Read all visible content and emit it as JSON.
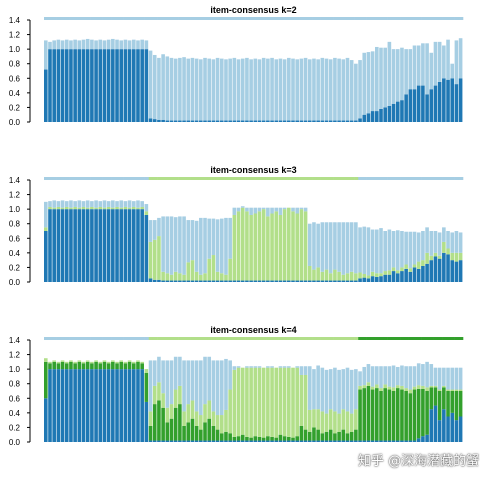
{
  "colors": {
    "c1": "#1f78b4",
    "c2": "#a6cee3",
    "c3": "#b2df8a",
    "c4": "#33a02c"
  },
  "watermark": "知乎 @深海潜藏的蟹",
  "chart_data": [
    {
      "type": "bar",
      "stacked": true,
      "title": "item-consensus k=2",
      "ylim": [
        0,
        1.4
      ],
      "yticks": [
        "0.0",
        "0.2",
        "0.4",
        "0.6",
        "0.8",
        "1.0",
        "1.2",
        "1.4"
      ],
      "class_strip": [
        "c2",
        "c2",
        "c2",
        "c2",
        "c2",
        "c2",
        "c2",
        "c2",
        "c2",
        "c2",
        "c2",
        "c2",
        "c2",
        "c2",
        "c2",
        "c2",
        "c2",
        "c2",
        "c2",
        "c2",
        "c2",
        "c2",
        "c2",
        "c2",
        "c2",
        "c2",
        "c2",
        "c2",
        "c2",
        "c2",
        "c2",
        "c2",
        "c2",
        "c2",
        "c2",
        "c2",
        "c2",
        "c2",
        "c2",
        "c2",
        "c2",
        "c2",
        "c2",
        "c2",
        "c2",
        "c2",
        "c2",
        "c2",
        "c2",
        "c2",
        "c2",
        "c2",
        "c2",
        "c2",
        "c2",
        "c2",
        "c2",
        "c2",
        "c2",
        "c2",
        "c2",
        "c2",
        "c2",
        "c2",
        "c2",
        "c2",
        "c2",
        "c2",
        "c2",
        "c2",
        "c2",
        "c2",
        "c2",
        "c2",
        "c2",
        "c2",
        "c2",
        "c2",
        "c2",
        "c2",
        "c2",
        "c2",
        "c2",
        "c2",
        "c2",
        "c2",
        "c2",
        "c2",
        "c2",
        "c2",
        "c2",
        "c2",
        "c2",
        "c2",
        "c2",
        "c2",
        "c2",
        "c2",
        "c2",
        "c2"
      ],
      "series_order": [
        "c1",
        "c2"
      ],
      "values": {
        "c1": [
          0.72,
          1.0,
          1.0,
          1.0,
          1.0,
          1.0,
          1.0,
          1.0,
          1.0,
          1.0,
          1.0,
          1.0,
          1.0,
          1.0,
          1.0,
          1.0,
          1.0,
          1.0,
          1.0,
          1.0,
          1.0,
          1.0,
          1.0,
          1.0,
          1.0,
          0.05,
          0.04,
          0.03,
          0.03,
          0.02,
          0.02,
          0.02,
          0.02,
          0.02,
          0.02,
          0.02,
          0.02,
          0.02,
          0.02,
          0.02,
          0.02,
          0.02,
          0.02,
          0.02,
          0.02,
          0.02,
          0.02,
          0.02,
          0.02,
          0.02,
          0.02,
          0.02,
          0.02,
          0.02,
          0.02,
          0.02,
          0.02,
          0.02,
          0.02,
          0.02,
          0.02,
          0.02,
          0.02,
          0.02,
          0.02,
          0.02,
          0.02,
          0.02,
          0.02,
          0.02,
          0.02,
          0.02,
          0.02,
          0.02,
          0.02,
          0.05,
          0.1,
          0.12,
          0.15,
          0.15,
          0.18,
          0.2,
          0.22,
          0.25,
          0.28,
          0.3,
          0.38,
          0.45,
          0.45,
          0.5,
          0.5,
          0.38,
          0.45,
          0.5,
          0.55,
          0.6,
          0.58,
          0.6,
          0.52,
          0.6
        ],
        "c2": [
          0.4,
          0.1,
          0.12,
          0.13,
          0.12,
          0.13,
          0.12,
          0.13,
          0.12,
          0.13,
          0.14,
          0.13,
          0.12,
          0.13,
          0.12,
          0.13,
          0.14,
          0.13,
          0.12,
          0.13,
          0.12,
          0.13,
          0.12,
          0.13,
          0.12,
          0.93,
          0.88,
          0.85,
          0.9,
          0.88,
          0.86,
          0.85,
          0.86,
          0.87,
          0.85,
          0.86,
          0.85,
          0.84,
          0.86,
          0.85,
          0.84,
          0.86,
          0.85,
          0.84,
          0.85,
          0.86,
          0.84,
          0.85,
          0.86,
          0.84,
          0.85,
          0.84,
          0.86,
          0.85,
          0.86,
          0.84,
          0.85,
          0.84,
          0.86,
          0.85,
          0.84,
          0.85,
          0.86,
          0.84,
          0.85,
          0.84,
          0.86,
          0.85,
          0.84,
          0.86,
          0.85,
          0.84,
          0.86,
          0.83,
          0.78,
          0.8,
          0.85,
          0.84,
          0.82,
          0.88,
          0.84,
          0.82,
          0.88,
          0.75,
          0.72,
          0.72,
          0.62,
          0.55,
          0.6,
          0.55,
          0.58,
          0.7,
          0.5,
          0.6,
          0.55,
          0.45,
          0.55,
          0.2,
          0.6,
          0.55
        ]
      }
    },
    {
      "type": "bar",
      "stacked": true,
      "title": "item-consensus k=3",
      "ylim": [
        0,
        1.4
      ],
      "yticks": [
        "0.0",
        "0.2",
        "0.4",
        "0.6",
        "0.8",
        "1.0",
        "1.2",
        "1.4"
      ],
      "class_strip": [
        "c2",
        "c2",
        "c2",
        "c2",
        "c2",
        "c2",
        "c2",
        "c2",
        "c2",
        "c2",
        "c2",
        "c2",
        "c2",
        "c2",
        "c2",
        "c2",
        "c2",
        "c2",
        "c2",
        "c2",
        "c2",
        "c2",
        "c2",
        "c2",
        "c2",
        "c3",
        "c3",
        "c3",
        "c3",
        "c3",
        "c3",
        "c3",
        "c3",
        "c3",
        "c3",
        "c3",
        "c3",
        "c3",
        "c3",
        "c3",
        "c3",
        "c3",
        "c3",
        "c3",
        "c3",
        "c3",
        "c3",
        "c3",
        "c3",
        "c3",
        "c3",
        "c3",
        "c3",
        "c3",
        "c3",
        "c3",
        "c3",
        "c3",
        "c3",
        "c3",
        "c3",
        "c3",
        "c3",
        "c3",
        "c3",
        "c3",
        "c3",
        "c3",
        "c3",
        "c3",
        "c3",
        "c3",
        "c3",
        "c3",
        "c3",
        "c2",
        "c2",
        "c2",
        "c2",
        "c2",
        "c2",
        "c2",
        "c2",
        "c2",
        "c2",
        "c2",
        "c2",
        "c2",
        "c2",
        "c2",
        "c2",
        "c2",
        "c2",
        "c2",
        "c2",
        "c2",
        "c2",
        "c2",
        "c2",
        "c2"
      ],
      "series_order": [
        "c1",
        "c3",
        "c2"
      ],
      "values": {
        "c1": [
          0.7,
          1.0,
          1.0,
          1.0,
          1.0,
          1.0,
          1.0,
          1.0,
          1.0,
          1.0,
          1.0,
          1.0,
          1.0,
          1.0,
          1.0,
          1.0,
          1.0,
          1.0,
          1.0,
          1.0,
          1.0,
          1.0,
          1.0,
          1.0,
          0.92,
          0.05,
          0.03,
          0.03,
          0.02,
          0.02,
          0.02,
          0.02,
          0.02,
          0.02,
          0.02,
          0.02,
          0.02,
          0.02,
          0.02,
          0.02,
          0.02,
          0.02,
          0.02,
          0.02,
          0.02,
          0.02,
          0.02,
          0.02,
          0.02,
          0.02,
          0.02,
          0.02,
          0.02,
          0.02,
          0.02,
          0.02,
          0.02,
          0.02,
          0.02,
          0.02,
          0.02,
          0.02,
          0.02,
          0.02,
          0.02,
          0.02,
          0.02,
          0.02,
          0.02,
          0.02,
          0.02,
          0.02,
          0.02,
          0.02,
          0.02,
          0.05,
          0.06,
          0.05,
          0.08,
          0.07,
          0.08,
          0.1,
          0.1,
          0.15,
          0.12,
          0.15,
          0.18,
          0.14,
          0.2,
          0.18,
          0.22,
          0.25,
          0.3,
          0.35,
          0.32,
          0.4,
          0.38,
          0.3,
          0.28,
          0.3
        ],
        "c3": [
          0.05,
          0.03,
          0.02,
          0.03,
          0.02,
          0.03,
          0.02,
          0.03,
          0.02,
          0.03,
          0.02,
          0.03,
          0.02,
          0.03,
          0.02,
          0.03,
          0.02,
          0.03,
          0.02,
          0.03,
          0.02,
          0.03,
          0.02,
          0.03,
          0.05,
          0.5,
          0.55,
          0.6,
          0.12,
          0.1,
          0.08,
          0.12,
          0.1,
          0.08,
          0.25,
          0.28,
          0.12,
          0.08,
          0.1,
          0.3,
          0.35,
          0.12,
          0.1,
          0.08,
          0.3,
          0.9,
          0.95,
          1.0,
          0.95,
          0.9,
          0.92,
          0.95,
          0.98,
          0.88,
          0.92,
          0.95,
          0.9,
          0.98,
          1.0,
          0.95,
          0.92,
          0.98,
          0.95,
          0.2,
          0.15,
          0.18,
          0.12,
          0.15,
          0.1,
          0.15,
          0.12,
          0.08,
          0.1,
          0.12,
          0.1,
          0.08,
          0.05,
          0.04,
          0.06,
          0.05,
          0.04,
          0.05,
          0.06,
          0.05,
          0.04,
          0.05,
          0.06,
          0.05,
          0.04,
          0.1,
          0.08,
          0.15,
          0.06,
          0.05,
          0.04,
          0.15,
          0.08,
          0.1,
          0.12,
          0.1
        ],
        "c2": [
          0.35,
          0.08,
          0.1,
          0.08,
          0.1,
          0.08,
          0.1,
          0.08,
          0.1,
          0.08,
          0.1,
          0.08,
          0.1,
          0.08,
          0.1,
          0.08,
          0.1,
          0.08,
          0.1,
          0.08,
          0.1,
          0.08,
          0.1,
          0.08,
          0.1,
          0.3,
          0.27,
          0.25,
          0.76,
          0.78,
          0.8,
          0.75,
          0.78,
          0.8,
          0.58,
          0.55,
          0.7,
          0.78,
          0.76,
          0.55,
          0.5,
          0.72,
          0.75,
          0.78,
          0.56,
          0.1,
          0.05,
          0.02,
          0.05,
          0.1,
          0.08,
          0.05,
          0.02,
          0.12,
          0.08,
          0.05,
          0.1,
          0.02,
          0.0,
          0.05,
          0.08,
          0.02,
          0.05,
          0.58,
          0.65,
          0.6,
          0.68,
          0.65,
          0.7,
          0.65,
          0.68,
          0.72,
          0.7,
          0.68,
          0.7,
          0.62,
          0.65,
          0.66,
          0.58,
          0.6,
          0.62,
          0.55,
          0.56,
          0.5,
          0.55,
          0.5,
          0.45,
          0.5,
          0.45,
          0.4,
          0.4,
          0.35,
          0.34,
          0.3,
          0.32,
          0.2,
          0.24,
          0.28,
          0.3,
          0.28
        ]
      }
    },
    {
      "type": "bar",
      "stacked": true,
      "title": "item-consensus k=4",
      "ylim": [
        0,
        1.4
      ],
      "yticks": [
        "0.0",
        "0.2",
        "0.4",
        "0.6",
        "0.8",
        "1.0",
        "1.2",
        "1.4"
      ],
      "class_strip": [
        "c2",
        "c2",
        "c2",
        "c2",
        "c2",
        "c2",
        "c2",
        "c2",
        "c2",
        "c2",
        "c2",
        "c2",
        "c2",
        "c2",
        "c2",
        "c2",
        "c2",
        "c2",
        "c2",
        "c2",
        "c2",
        "c2",
        "c2",
        "c2",
        "c2",
        "c3",
        "c3",
        "c3",
        "c3",
        "c3",
        "c3",
        "c3",
        "c3",
        "c3",
        "c3",
        "c3",
        "c3",
        "c3",
        "c3",
        "c3",
        "c3",
        "c3",
        "c3",
        "c3",
        "c3",
        "c3",
        "c3",
        "c3",
        "c3",
        "c3",
        "c3",
        "c3",
        "c3",
        "c3",
        "c3",
        "c3",
        "c3",
        "c3",
        "c3",
        "c3",
        "c3",
        "c3",
        "c3",
        "c3",
        "c3",
        "c3",
        "c3",
        "c3",
        "c3",
        "c3",
        "c3",
        "c3",
        "c3",
        "c3",
        "c3",
        "c4",
        "c4",
        "c4",
        "c4",
        "c4",
        "c4",
        "c4",
        "c4",
        "c4",
        "c4",
        "c4",
        "c4",
        "c4",
        "c4",
        "c4",
        "c4",
        "c4",
        "c4",
        "c4",
        "c4",
        "c4",
        "c4",
        "c4",
        "c4",
        "c4"
      ],
      "series_order": [
        "c1",
        "c4",
        "c3",
        "c2"
      ],
      "values": {
        "c1": [
          0.6,
          1.0,
          1.0,
          1.0,
          1.0,
          1.0,
          1.0,
          1.0,
          1.0,
          1.0,
          1.0,
          1.0,
          1.0,
          1.0,
          1.0,
          1.0,
          1.0,
          1.0,
          1.0,
          1.0,
          1.0,
          1.0,
          1.0,
          1.0,
          0.55,
          0.02,
          0.02,
          0.02,
          0.02,
          0.02,
          0.02,
          0.02,
          0.02,
          0.02,
          0.02,
          0.02,
          0.02,
          0.02,
          0.02,
          0.02,
          0.02,
          0.02,
          0.02,
          0.02,
          0.02,
          0.02,
          0.02,
          0.02,
          0.02,
          0.02,
          0.02,
          0.02,
          0.02,
          0.02,
          0.02,
          0.02,
          0.02,
          0.02,
          0.02,
          0.02,
          0.02,
          0.02,
          0.02,
          0.02,
          0.02,
          0.02,
          0.02,
          0.02,
          0.02,
          0.02,
          0.02,
          0.02,
          0.02,
          0.02,
          0.02,
          0.02,
          0.02,
          0.02,
          0.02,
          0.02,
          0.02,
          0.02,
          0.02,
          0.02,
          0.02,
          0.02,
          0.02,
          0.02,
          0.02,
          0.05,
          0.08,
          0.1,
          0.45,
          0.5,
          0.3,
          0.45,
          0.35,
          0.4,
          0.3,
          0.35
        ],
        "c4": [
          0.5,
          0.08,
          0.1,
          0.08,
          0.1,
          0.08,
          0.1,
          0.08,
          0.1,
          0.08,
          0.1,
          0.08,
          0.1,
          0.08,
          0.1,
          0.08,
          0.1,
          0.08,
          0.1,
          0.08,
          0.1,
          0.08,
          0.1,
          0.08,
          0.4,
          0.2,
          0.5,
          0.55,
          0.45,
          0.25,
          0.3,
          0.45,
          0.5,
          0.2,
          0.25,
          0.3,
          0.2,
          0.15,
          0.25,
          0.3,
          0.2,
          0.15,
          0.1,
          0.12,
          0.1,
          0.05,
          0.06,
          0.08,
          0.05,
          0.04,
          0.06,
          0.05,
          0.04,
          0.06,
          0.05,
          0.04,
          0.08,
          0.06,
          0.05,
          0.04,
          0.06,
          0.2,
          0.15,
          0.12,
          0.18,
          0.15,
          0.1,
          0.12,
          0.15,
          0.1,
          0.12,
          0.15,
          0.1,
          0.12,
          0.15,
          0.7,
          0.72,
          0.75,
          0.7,
          0.72,
          0.68,
          0.72,
          0.7,
          0.68,
          0.72,
          0.7,
          0.68,
          0.65,
          0.7,
          0.68,
          0.65,
          0.6,
          0.3,
          0.25,
          0.4,
          0.3,
          0.35,
          0.3,
          0.4,
          0.35
        ],
        "c3": [
          0.05,
          0.02,
          0.02,
          0.02,
          0.02,
          0.02,
          0.02,
          0.02,
          0.02,
          0.02,
          0.02,
          0.02,
          0.02,
          0.02,
          0.02,
          0.02,
          0.02,
          0.02,
          0.02,
          0.02,
          0.02,
          0.02,
          0.02,
          0.02,
          0.05,
          0.2,
          0.25,
          0.25,
          0.2,
          0.2,
          0.2,
          0.25,
          0.25,
          0.2,
          0.25,
          0.25,
          0.2,
          0.2,
          0.25,
          0.25,
          0.2,
          0.2,
          0.25,
          0.3,
          0.6,
          0.92,
          0.94,
          0.92,
          0.95,
          0.96,
          0.94,
          0.95,
          0.96,
          0.94,
          0.95,
          0.96,
          0.92,
          0.94,
          0.95,
          0.96,
          0.94,
          0.7,
          0.75,
          0.3,
          0.25,
          0.28,
          0.3,
          0.25,
          0.28,
          0.3,
          0.25,
          0.28,
          0.3,
          0.25,
          0.28,
          0.05,
          0.04,
          0.05,
          0.04,
          0.05,
          0.04,
          0.05,
          0.04,
          0.05,
          0.04,
          0.05,
          0.04,
          0.05,
          0.04,
          0.05,
          0.04,
          0.05,
          0.02,
          0.02,
          0.02,
          0.02,
          0.02,
          0.02,
          0.02,
          0.02
        ],
        "c2": [
          0.0,
          0.0,
          0.0,
          0.0,
          0.0,
          0.0,
          0.0,
          0.0,
          0.0,
          0.0,
          0.0,
          0.0,
          0.0,
          0.0,
          0.0,
          0.0,
          0.0,
          0.0,
          0.0,
          0.0,
          0.0,
          0.0,
          0.0,
          0.0,
          0.0,
          0.7,
          0.35,
          0.35,
          0.45,
          0.65,
          0.6,
          0.45,
          0.4,
          0.7,
          0.6,
          0.55,
          0.7,
          0.75,
          0.65,
          0.6,
          0.7,
          0.75,
          0.75,
          0.7,
          0.4,
          0.05,
          0.02,
          0.0,
          0.02,
          0.02,
          0.02,
          0.02,
          0.0,
          0.02,
          0.02,
          0.0,
          0.02,
          0.02,
          0.02,
          0.0,
          0.02,
          0.12,
          0.12,
          0.6,
          0.55,
          0.6,
          0.6,
          0.6,
          0.55,
          0.6,
          0.6,
          0.55,
          0.6,
          0.6,
          0.55,
          0.2,
          0.25,
          0.25,
          0.28,
          0.25,
          0.3,
          0.25,
          0.28,
          0.3,
          0.25,
          0.28,
          0.3,
          0.32,
          0.28,
          0.3,
          0.3,
          0.35,
          0.3,
          0.25,
          0.3,
          0.25,
          0.3,
          0.3,
          0.3,
          0.3
        ]
      }
    }
  ]
}
